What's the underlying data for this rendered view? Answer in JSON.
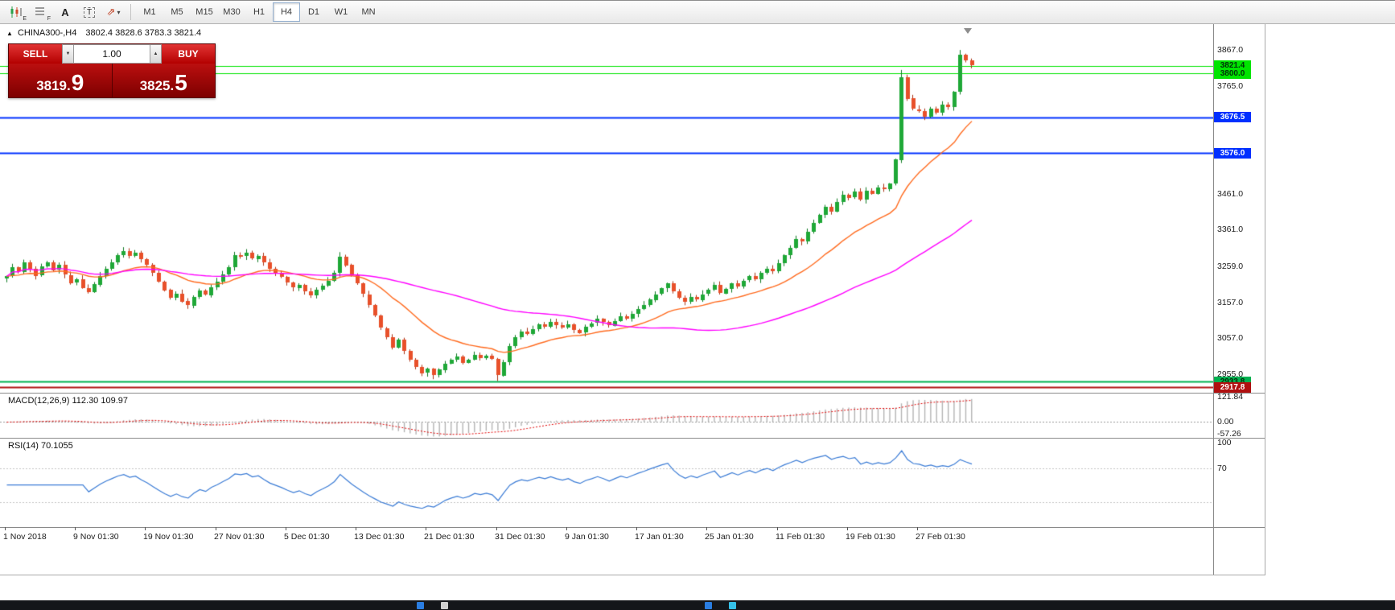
{
  "toolbar": {
    "icons": [
      {
        "name": "chart-expert-icon",
        "sub": "E"
      },
      {
        "name": "data-grid-icon",
        "sub": "F"
      },
      {
        "name": "text-label-icon",
        "glyph": "A"
      },
      {
        "name": "text-box-icon",
        "glyph": "T"
      },
      {
        "name": "arrow-draw-icon",
        "glyph": "⇗",
        "caret": "▾"
      }
    ],
    "timeframes": [
      {
        "label": "M1",
        "active": false
      },
      {
        "label": "M5",
        "active": false
      },
      {
        "label": "M15",
        "active": false
      },
      {
        "label": "M30",
        "active": false
      },
      {
        "label": "H1",
        "active": false
      },
      {
        "label": "H4",
        "active": true
      },
      {
        "label": "D1",
        "active": false
      },
      {
        "label": "W1",
        "active": false
      },
      {
        "label": "MN",
        "active": false
      }
    ]
  },
  "header": {
    "icon": "▲",
    "title": "CHINA300-,H4",
    "ohlc": "3802.4 3828.6 3783.3 3821.4"
  },
  "trade_panel": {
    "sell_label": "SELL",
    "buy_label": "BUY",
    "volume": "1.00",
    "spin_down": "▼",
    "spin_up": "▲",
    "sell_price_small": "3819.",
    "sell_price_big": "9",
    "buy_price_small": "3825.",
    "buy_price_big": "5"
  },
  "chart_data": {
    "type": "candlestick",
    "symbol": "CHINA300-",
    "timeframe": "H4",
    "ohlc_header": {
      "open": 3802.4,
      "high": 3828.6,
      "low": 3783.3,
      "close": 3821.4
    },
    "ylim": [
      2903,
      3907
    ],
    "x_axis": {
      "labels": [
        "1 Nov 2018",
        "9 Nov 01:30",
        "19 Nov 01:30",
        "27 Nov 01:30",
        "5 Dec 01:30",
        "13 Dec 01:30",
        "21 Dec 01:30",
        "31 Dec 01:30",
        "9 Jan 01:30",
        "17 Jan 01:30",
        "25 Jan 01:30",
        "11 Feb 01:30",
        "19 Feb 01:30",
        "27 Feb 01:30"
      ],
      "candles_per_label": 12
    },
    "closes": [
      3230,
      3255,
      3243,
      3270,
      3252,
      3232,
      3258,
      3270,
      3248,
      3262,
      3234,
      3212,
      3222,
      3198,
      3186,
      3208,
      3232,
      3252,
      3270,
      3290,
      3302,
      3288,
      3296,
      3278,
      3262,
      3240,
      3216,
      3192,
      3170,
      3182,
      3160,
      3148,
      3172,
      3190,
      3178,
      3200,
      3215,
      3235,
      3255,
      3290,
      3286,
      3296,
      3280,
      3288,
      3270,
      3252,
      3240,
      3228,
      3212,
      3198,
      3206,
      3188,
      3176,
      3192,
      3204,
      3218,
      3240,
      3286,
      3262,
      3235,
      3210,
      3180,
      3150,
      3120,
      3085,
      3060,
      3030,
      3052,
      3020,
      2995,
      2975,
      2958,
      2970,
      2952,
      2968,
      2985,
      2996,
      3005,
      2988,
      2996,
      3010,
      3002,
      3008,
      2998,
      2952,
      2990,
      3035,
      3060,
      3075,
      3068,
      3082,
      3095,
      3088,
      3102,
      3092,
      3085,
      3095,
      3080,
      3072,
      3088,
      3098,
      3110,
      3102,
      3092,
      3105,
      3118,
      3112,
      3125,
      3138,
      3150,
      3165,
      3180,
      3196,
      3210,
      3188,
      3170,
      3158,
      3172,
      3165,
      3180,
      3192,
      3205,
      3182,
      3195,
      3210,
      3202,
      3218,
      3230,
      3222,
      3240,
      3252,
      3245,
      3268,
      3290,
      3310,
      3335,
      3328,
      3355,
      3380,
      3402,
      3425,
      3412,
      3440,
      3460,
      3452,
      3468,
      3445,
      3470,
      3462,
      3480,
      3475,
      3490,
      3558,
      3790,
      3730,
      3700,
      3695,
      3680,
      3702,
      3690,
      3712,
      3705,
      3748,
      3852,
      3836,
      3821.4
    ],
    "wick_highs": {
      "20": 3312,
      "57": 3298,
      "153": 3810,
      "163": 3866
    },
    "wick_lows": {
      "73": 2941,
      "84": 2936
    },
    "colors": {
      "bull": "#1fa837",
      "bull_dark": "#0e7a22",
      "bear": "#e8502a",
      "bear_dark": "#a83518"
    },
    "moving_averages": [
      {
        "type": "ema",
        "period": 20,
        "color": "#ff6a1e"
      },
      {
        "type": "sma",
        "period": 60,
        "color": "#ff00ff"
      }
    ],
    "levels": [
      {
        "price": 3821.4,
        "color": "#00e400",
        "width": 1,
        "label": "3821.4",
        "label_bg": "#00e400",
        "label_fg": "#00320a"
      },
      {
        "price": 3800.0,
        "color": "#00e400",
        "width": 1,
        "label": "3800.0",
        "label_bg": "#00e400",
        "label_fg": "#00320a"
      },
      {
        "price": 3676.5,
        "color": "#0030ff",
        "width": 2,
        "label": "3676.5",
        "label_bg": "#0030ff",
        "label_fg": "#ffffff"
      },
      {
        "price": 3576.0,
        "color": "#0030ff",
        "width": 2,
        "label": "3576.0",
        "label_bg": "#0030ff",
        "label_fg": "#ffffff"
      },
      {
        "price": 2933.8,
        "color": "#00b050",
        "width": 2,
        "label": "2933.8",
        "label_bg": "#00b050",
        "label_fg": "#00320a"
      },
      {
        "price": 2917.8,
        "color": "#b01010",
        "width": 2,
        "label": "2917.8",
        "label_bg": "#b01010",
        "label_fg": "#ffffff"
      }
    ],
    "scale_labels": [
      {
        "text": "3867.0",
        "value": 3867
      },
      {
        "text": "3765.0",
        "value": 3765
      },
      {
        "text": "3461.0",
        "value": 3461
      },
      {
        "text": "3361.0",
        "value": 3361
      },
      {
        "text": "3259.0",
        "value": 3259
      },
      {
        "text": "3157.0",
        "value": 3157
      },
      {
        "text": "3057.0",
        "value": 3057
      },
      {
        "text": "2955.0",
        "value": 2955
      }
    ],
    "macd": {
      "label": "MACD(12,26,9) 112.30 109.97",
      "fast": 12,
      "slow": 26,
      "signal": 9,
      "current": 112.3,
      "current_signal": 109.97,
      "scale": [
        {
          "text": "121.84",
          "value": 121.84
        },
        {
          "text": "0.00",
          "value": 0
        },
        {
          "text": "-57.26",
          "value": -57.26
        }
      ],
      "range": [
        -72,
        138
      ],
      "hist_color": "#b4b4b4",
      "signal_color": "#e00000"
    },
    "rsi": {
      "label": "RSI(14) 70.1055",
      "period": 14,
      "current": 70.1055,
      "scale": [
        {
          "text": "100",
          "value": 100
        },
        {
          "text": "70",
          "value": 70
        }
      ],
      "levels": [
        70,
        30
      ],
      "range": [
        0,
        105
      ],
      "color": "#3a7bd5"
    }
  },
  "taskbar": {
    "icons": [
      {
        "name": "taskbar-icon-1",
        "color": "#2a7de1",
        "x": 518
      },
      {
        "name": "taskbar-icon-2",
        "color": "#d0d0d0",
        "x": 548
      },
      {
        "name": "taskbar-icon-3",
        "color": "#2a7de1",
        "x": 876
      },
      {
        "name": "taskbar-icon-4",
        "color": "#35c0e8",
        "x": 906
      }
    ]
  }
}
